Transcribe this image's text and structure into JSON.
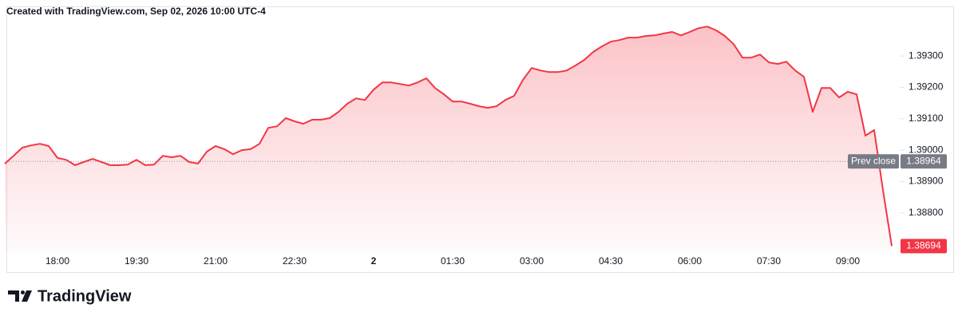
{
  "chart_data": {
    "type": "area",
    "title": "Created with TradingView.com, Sep 02, 2026 10:00 UTC-4",
    "brand": "TradingView",
    "color": "#f23645",
    "x": [
      "17:00",
      "17:10",
      "17:20",
      "17:30",
      "17:40",
      "17:50",
      "18:00",
      "18:10",
      "18:20",
      "18:30",
      "18:40",
      "18:50",
      "19:00",
      "19:10",
      "19:20",
      "19:30",
      "19:40",
      "19:50",
      "20:00",
      "20:10",
      "20:20",
      "20:30",
      "20:40",
      "20:50",
      "21:00",
      "21:10",
      "21:20",
      "21:30",
      "21:40",
      "21:50",
      "22:00",
      "22:10",
      "22:20",
      "22:30",
      "22:40",
      "22:50",
      "23:00",
      "23:10",
      "23:20",
      "23:30",
      "23:40",
      "23:50",
      "00:00",
      "00:10",
      "00:20",
      "00:30",
      "00:40",
      "00:50",
      "01:00",
      "01:10",
      "01:20",
      "01:30",
      "01:40",
      "01:50",
      "02:00",
      "02:10",
      "02:20",
      "02:30",
      "02:40",
      "02:50",
      "03:00",
      "03:10",
      "03:20",
      "03:30",
      "03:40",
      "03:50",
      "04:00",
      "04:10",
      "04:20",
      "04:30",
      "04:40",
      "04:50",
      "05:00",
      "05:10",
      "05:20",
      "05:30",
      "05:40",
      "05:50",
      "06:00",
      "06:10",
      "06:20",
      "06:30",
      "06:40",
      "06:50",
      "07:00",
      "07:10",
      "07:20",
      "07:30",
      "07:40",
      "07:50",
      "08:00",
      "08:10",
      "08:20",
      "08:30",
      "08:40",
      "08:50",
      "09:00",
      "09:10",
      "09:20",
      "09:30",
      "09:40",
      "09:50"
    ],
    "values": [
      1.38957,
      1.38982,
      1.39008,
      1.39015,
      1.3902,
      1.39013,
      1.38975,
      1.38969,
      1.38952,
      1.38962,
      1.38972,
      1.38962,
      1.38952,
      1.38952,
      1.38954,
      1.38969,
      1.38952,
      1.38954,
      1.38982,
      1.38977,
      1.38982,
      1.38962,
      1.38957,
      1.38995,
      1.39013,
      1.39003,
      1.38987,
      1.39,
      1.39003,
      1.3902,
      1.39071,
      1.39076,
      1.39102,
      1.39092,
      1.39084,
      1.39097,
      1.39097,
      1.39102,
      1.39122,
      1.39148,
      1.39165,
      1.3916,
      1.39193,
      1.39216,
      1.39216,
      1.39211,
      1.39206,
      1.39216,
      1.39229,
      1.39198,
      1.39178,
      1.39155,
      1.39155,
      1.39148,
      1.3914,
      1.39135,
      1.3914,
      1.3916,
      1.39173,
      1.39224,
      1.39262,
      1.39254,
      1.39249,
      1.39249,
      1.39254,
      1.3927,
      1.39288,
      1.39313,
      1.39331,
      1.39346,
      1.39351,
      1.39359,
      1.39359,
      1.39364,
      1.39366,
      1.39372,
      1.39377,
      1.39366,
      1.39377,
      1.39389,
      1.39394,
      1.39382,
      1.39364,
      1.39338,
      1.39295,
      1.39295,
      1.39305,
      1.3928,
      1.39275,
      1.39282,
      1.39254,
      1.39234,
      1.39122,
      1.39198,
      1.39198,
      1.39168,
      1.39186,
      1.39178,
      1.39046,
      1.39064,
      1.38873,
      1.38694
    ],
    "xticks": [
      "18:00",
      "19:30",
      "21:00",
      "22:30",
      {
        "value": "00:00",
        "label": "2"
      },
      "01:30",
      "03:00",
      "04:30",
      "06:00",
      "07:30",
      "09:00"
    ],
    "ylim": [
      1.38677,
      1.39433
    ],
    "yticks": [
      {
        "value": 1.388,
        "label": "1.38800"
      },
      {
        "value": 1.389,
        "label": "1.38900"
      },
      {
        "value": 1.39,
        "label": "1.39000"
      },
      {
        "value": 1.391,
        "label": "1.39100"
      },
      {
        "value": 1.392,
        "label": "1.39200"
      },
      {
        "value": 1.393,
        "label": "1.39300"
      }
    ],
    "prev_close": {
      "label": "Prev close",
      "value": 1.38964
    },
    "grid": false
  }
}
